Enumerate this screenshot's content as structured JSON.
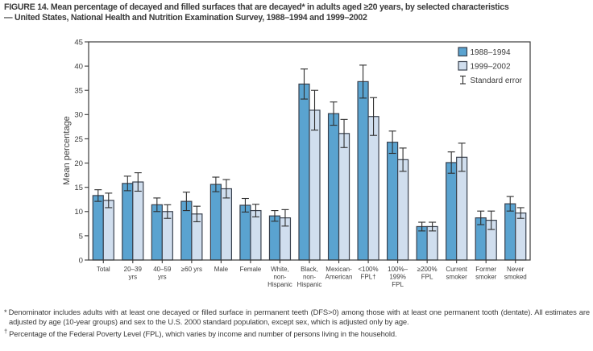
{
  "figure": {
    "title_line1": "FIGURE 14. Mean percentage of decayed and filled surfaces that are decayed* in adults aged ≥20 years, by selected characteristics",
    "title_line2": "— United States, National Health and Nutrition Examination Survey, 1988–1994 and 1999–2002"
  },
  "footnotes": [
    {
      "marker": "*",
      "text": "Denominator includes adults with at least one decayed or filled surface in permanent teeth (DFS>0) among those with at least one permanent tooth (dentate). All estimates are adjusted by age (10-year groups) and sex to the U.S. 2000 standard population, except sex, which is adjusted only by age."
    },
    {
      "marker": "†",
      "text": "Percentage of the Federal Poverty Level (FPL), which varies by income and number of persons living in the household."
    }
  ],
  "colors": {
    "series_1988": "#5AA3D0",
    "series_1999": "#D0DEEE",
    "outline": "#39414E",
    "axis": "#3B3B3B",
    "error": "#2E2E2E",
    "text": "#3C3C3C"
  },
  "chart_data": {
    "type": "bar",
    "title": "Mean percentage of decayed and filled surfaces that are decayed in adults aged ≥20 years, by selected characteristics, NHANES 1988–1994 and 1999–2002",
    "xlabel": "",
    "ylabel": "Mean percentage",
    "ylim": [
      0,
      45
    ],
    "yticks": [
      0,
      5,
      10,
      15,
      20,
      25,
      30,
      35,
      40,
      45
    ],
    "grid": false,
    "legend_position": "top-right",
    "error_bars": "standard error",
    "categories": [
      {
        "label": "Total",
        "lines": [
          "Total"
        ]
      },
      {
        "label": "20–39 yrs",
        "lines": [
          "20–39",
          "yrs"
        ]
      },
      {
        "label": "40–59 yrs",
        "lines": [
          "40–59",
          "yrs"
        ]
      },
      {
        "label": "≥60 yrs",
        "lines": [
          "≥60 yrs"
        ]
      },
      {
        "label": "Male",
        "lines": [
          "Male"
        ]
      },
      {
        "label": "Female",
        "lines": [
          "Female"
        ]
      },
      {
        "label": "White, non-Hispanic",
        "lines": [
          "White,",
          "non-",
          "Hispanic"
        ]
      },
      {
        "label": "Black, non-Hispanic",
        "lines": [
          "Black,",
          "non-",
          "Hispanic"
        ]
      },
      {
        "label": "Mexican-American",
        "lines": [
          "Mexican-",
          "American"
        ]
      },
      {
        "label": "<100% FPL†",
        "lines": [
          "<100%",
          "FPL†"
        ]
      },
      {
        "label": "100%–199% FPL",
        "lines": [
          "100%–",
          "199%",
          "FPL"
        ]
      },
      {
        "label": "≥200% FPL",
        "lines": [
          "≥200%",
          "FPL"
        ]
      },
      {
        "label": "Current smoker",
        "lines": [
          "Current",
          "smoker"
        ]
      },
      {
        "label": "Former smoker",
        "lines": [
          "Former",
          "smoker"
        ]
      },
      {
        "label": "Never smoked",
        "lines": [
          "Never",
          "smoked"
        ]
      }
    ],
    "series": [
      {
        "name": "1988–1994",
        "color_key": "series_1988",
        "values": [
          13.3,
          15.8,
          11.4,
          12.1,
          15.6,
          11.3,
          9.1,
          36.3,
          30.2,
          36.8,
          24.3,
          6.9,
          20.1,
          8.7,
          11.6
        ],
        "se": [
          1.2,
          1.5,
          1.4,
          1.9,
          1.5,
          1.4,
          1.1,
          3.1,
          2.4,
          3.4,
          2.3,
          0.9,
          2.2,
          1.4,
          1.5
        ]
      },
      {
        "name": "1999–2002",
        "color_key": "series_1999",
        "values": [
          12.3,
          16.1,
          10.0,
          9.5,
          14.7,
          10.2,
          8.7,
          30.9,
          26.1,
          29.6,
          20.7,
          6.9,
          21.2,
          8.2,
          9.7
        ],
        "se": [
          1.5,
          1.9,
          1.4,
          1.6,
          1.9,
          1.3,
          1.7,
          4.1,
          2.9,
          3.9,
          2.4,
          0.9,
          2.9,
          1.9,
          1.1
        ]
      }
    ],
    "legend_entries": [
      {
        "label": "1988–1994",
        "swatch": "series_1988"
      },
      {
        "label": "1999–2002",
        "swatch": "series_1999"
      },
      {
        "label": "Standard error",
        "swatch": "error-bar"
      }
    ]
  }
}
